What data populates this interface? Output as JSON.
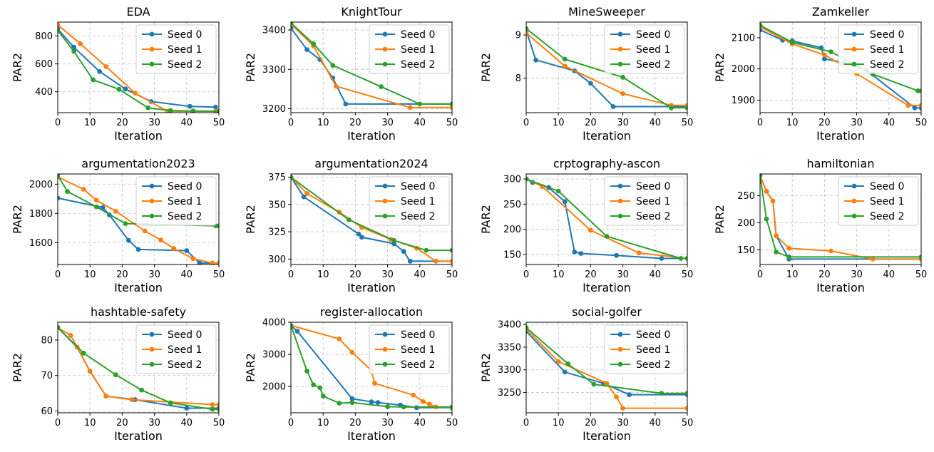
{
  "colors": {
    "seed0": "#1f77b4",
    "seed1": "#ff7f0e",
    "seed2": "#2ca02c"
  },
  "chart_data": [
    {
      "type": "line",
      "title": "EDA",
      "xlabel": "Iteration",
      "ylabel": "PAR2",
      "xlim": [
        0,
        50
      ],
      "ylim": [
        250,
        900
      ],
      "xticks": [
        0,
        10,
        20,
        30,
        40,
        50
      ],
      "yticks": [
        400,
        600,
        800
      ],
      "grid": true,
      "legend": "upper right",
      "series": [
        {
          "name": "Seed 0",
          "color": "#1f77b4",
          "x": [
            0,
            5,
            13,
            21,
            29,
            41,
            49
          ],
          "y": [
            850,
            720,
            545,
            420,
            330,
            295,
            290
          ]
        },
        {
          "name": "Seed 1",
          "color": "#ff7f0e",
          "x": [
            0,
            7,
            15,
            24,
            34,
            49
          ],
          "y": [
            880,
            745,
            580,
            390,
            260,
            260
          ]
        },
        {
          "name": "Seed 2",
          "color": "#2ca02c",
          "x": [
            0,
            5,
            11,
            19,
            28,
            35,
            42,
            50
          ],
          "y": [
            840,
            690,
            485,
            418,
            285,
            265,
            262,
            260
          ]
        }
      ]
    },
    {
      "type": "line",
      "title": "KnightTour",
      "xlabel": "Iteration",
      "ylabel": "PAR2",
      "xlim": [
        0,
        50
      ],
      "ylim": [
        3190,
        3420
      ],
      "xticks": [
        0,
        10,
        20,
        30,
        40,
        50
      ],
      "yticks": [
        3200,
        3300,
        3400
      ],
      "grid": true,
      "legend": "upper right",
      "series": [
        {
          "name": "Seed 0",
          "color": "#1f77b4",
          "x": [
            0,
            5,
            9,
            13,
            17,
            50
          ],
          "y": [
            3405,
            3350,
            3325,
            3278,
            3212,
            3212
          ]
        },
        {
          "name": "Seed 1",
          "color": "#ff7f0e",
          "x": [
            0,
            7,
            14,
            37,
            50
          ],
          "y": [
            3415,
            3360,
            3257,
            3203,
            3203
          ]
        },
        {
          "name": "Seed 2",
          "color": "#2ca02c",
          "x": [
            0,
            7,
            13,
            28,
            40,
            50
          ],
          "y": [
            3418,
            3365,
            3310,
            3256,
            3212,
            3212
          ]
        }
      ]
    },
    {
      "type": "line",
      "title": "MineSweeper",
      "xlabel": "Iteration",
      "ylabel": "PAR2",
      "xlim": [
        0,
        50
      ],
      "ylim": [
        7.2,
        9.3
      ],
      "xticks": [
        0,
        10,
        20,
        30,
        40,
        50
      ],
      "yticks": [
        8,
        9
      ],
      "grid": true,
      "legend": "upper right",
      "series": [
        {
          "name": "Seed 0",
          "color": "#1f77b4",
          "x": [
            0,
            3,
            15,
            20,
            27,
            50
          ],
          "y": [
            9.1,
            8.42,
            8.17,
            7.88,
            7.34,
            7.34
          ]
        },
        {
          "name": "Seed 1",
          "color": "#ff7f0e",
          "x": [
            0,
            12,
            30,
            45,
            50
          ],
          "y": [
            9.05,
            8.28,
            7.64,
            7.37,
            7.37
          ]
        },
        {
          "name": "Seed 2",
          "color": "#2ca02c",
          "x": [
            0,
            12,
            30,
            45,
            50
          ],
          "y": [
            9.15,
            8.44,
            8.02,
            7.31,
            7.31
          ]
        }
      ]
    },
    {
      "type": "line",
      "title": "Zamkeller",
      "xlabel": "Iteration",
      "ylabel": "PAR2",
      "xlim": [
        0,
        50
      ],
      "ylim": [
        1860,
        2150
      ],
      "xticks": [
        0,
        10,
        20,
        30,
        40,
        50
      ],
      "yticks": [
        1900,
        2000,
        2100
      ],
      "grid": true,
      "legend": "upper right",
      "series": [
        {
          "name": "Seed 0",
          "color": "#1f77b4",
          "x": [
            0,
            7,
            10,
            19,
            20,
            26,
            33,
            48,
            50
          ],
          "y": [
            2125,
            2092,
            2090,
            2068,
            2032,
            2020,
            1996,
            1875,
            1875
          ]
        },
        {
          "name": "Seed 1",
          "color": "#ff7f0e",
          "x": [
            0,
            10,
            20,
            30,
            46,
            50
          ],
          "y": [
            2135,
            2080,
            2045,
            1985,
            1883,
            1883
          ]
        },
        {
          "name": "Seed 2",
          "color": "#2ca02c",
          "x": [
            0,
            10,
            22,
            35,
            49,
            50
          ],
          "y": [
            2140,
            2085,
            2055,
            1983,
            1930,
            1930
          ]
        }
      ]
    },
    {
      "type": "line",
      "title": "argumentation2023",
      "xlabel": "Iteration",
      "ylabel": "PAR2",
      "xlim": [
        0,
        50
      ],
      "ylim": [
        1450,
        2070
      ],
      "xticks": [
        0,
        10,
        20,
        30,
        40,
        50
      ],
      "yticks": [
        1600,
        1800,
        2000
      ],
      "grid": true,
      "legend": "upper right",
      "series": [
        {
          "name": "Seed 0",
          "color": "#1f77b4",
          "x": [
            0,
            14,
            16,
            22,
            25,
            40,
            44,
            50
          ],
          "y": [
            1905,
            1840,
            1790,
            1615,
            1553,
            1545,
            1460,
            1460
          ]
        },
        {
          "name": "Seed 1",
          "color": "#ff7f0e",
          "x": [
            0,
            8,
            12,
            18,
            27,
            32,
            36,
            42,
            48,
            50
          ],
          "y": [
            2050,
            1965,
            1890,
            1815,
            1680,
            1618,
            1560,
            1490,
            1460,
            1460
          ]
        },
        {
          "name": "Seed 2",
          "color": "#2ca02c",
          "x": [
            0,
            3,
            12,
            21,
            49,
            50
          ],
          "y": [
            2060,
            1950,
            1845,
            1730,
            1715,
            1715
          ]
        }
      ]
    },
    {
      "type": "line",
      "title": "argumentation2024",
      "xlabel": "Iteration",
      "ylabel": "PAR2",
      "xlim": [
        0,
        50
      ],
      "ylim": [
        295,
        378
      ],
      "xticks": [
        0,
        10,
        20,
        30,
        40,
        50
      ],
      "yticks": [
        300,
        325,
        350,
        375
      ],
      "grid": true,
      "legend": "upper right",
      "series": [
        {
          "name": "Seed 0",
          "color": "#1f77b4",
          "x": [
            0,
            4,
            21,
            22,
            32,
            35,
            37,
            50
          ],
          "y": [
            375,
            357,
            323,
            320,
            314,
            307,
            298,
            298
          ]
        },
        {
          "name": "Seed 1",
          "color": "#ff7f0e",
          "x": [
            0,
            5,
            15,
            22,
            31,
            39,
            45,
            50
          ],
          "y": [
            375,
            360,
            343,
            329,
            318,
            310,
            298,
            298
          ]
        },
        {
          "name": "Seed 2",
          "color": "#2ca02c",
          "x": [
            0,
            18,
            32,
            42,
            50
          ],
          "y": [
            375,
            336,
            317,
            308,
            308
          ]
        }
      ]
    },
    {
      "type": "line",
      "title": "crptography-ascon",
      "xlabel": "Iteration",
      "ylabel": "PAR2",
      "xlim": [
        0,
        50
      ],
      "ylim": [
        130,
        310
      ],
      "xticks": [
        0,
        10,
        20,
        30,
        40,
        50
      ],
      "yticks": [
        150,
        200,
        250,
        300
      ],
      "grid": true,
      "legend": "upper right",
      "series": [
        {
          "name": "Seed 0",
          "color": "#1f77b4",
          "x": [
            0,
            2,
            7,
            12,
            15,
            17,
            28,
            42,
            50
          ],
          "y": [
            300,
            293,
            283,
            255,
            155,
            152,
            148,
            142,
            142
          ]
        },
        {
          "name": "Seed 1",
          "color": "#ff7f0e",
          "x": [
            0,
            5,
            20,
            35,
            50
          ],
          "y": [
            300,
            285,
            198,
            153,
            142
          ]
        },
        {
          "name": "Seed 2",
          "color": "#2ca02c",
          "x": [
            0,
            10,
            25,
            48,
            50
          ],
          "y": [
            300,
            276,
            186,
            142,
            142
          ]
        }
      ]
    },
    {
      "type": "line",
      "title": "hamiltonian",
      "xlabel": "Iteration",
      "ylabel": "PAR2",
      "xlim": [
        0,
        50
      ],
      "ylim": [
        123,
        290
      ],
      "xticks": [
        0,
        10,
        20,
        30,
        40,
        50
      ],
      "yticks": [
        150,
        200,
        250
      ],
      "grid": true,
      "legend": "upper right",
      "series": [
        {
          "name": "Seed 0",
          "color": "#1f77b4",
          "x": [
            0,
            2,
            4,
            5,
            9,
            50
          ],
          "y": [
            287,
            258,
            240,
            176,
            133,
            133
          ]
        },
        {
          "name": "Seed 1",
          "color": "#ff7f0e",
          "x": [
            0,
            2,
            4,
            5,
            9,
            22,
            35,
            50
          ],
          "y": [
            287,
            258,
            240,
            176,
            153,
            148,
            133,
            133
          ]
        },
        {
          "name": "Seed 2",
          "color": "#2ca02c",
          "x": [
            0,
            2,
            5,
            9,
            50
          ],
          "y": [
            287,
            207,
            146,
            137,
            137
          ]
        }
      ]
    },
    {
      "type": "line",
      "title": "hashtable-safety",
      "xlabel": "Iteration",
      "ylabel": "PAR2",
      "xlim": [
        0,
        50
      ],
      "ylim": [
        59.5,
        85
      ],
      "xticks": [
        0,
        10,
        20,
        30,
        40,
        50
      ],
      "yticks": [
        60,
        70,
        80
      ],
      "grid": true,
      "legend": "upper right",
      "series": [
        {
          "name": "Seed 0",
          "color": "#1f77b4",
          "x": [
            0,
            6,
            10,
            15,
            24,
            40,
            50
          ],
          "y": [
            83.5,
            78,
            71.2,
            64.2,
            63.2,
            60.8,
            60.8
          ]
        },
        {
          "name": "Seed 1",
          "color": "#ff7f0e",
          "x": [
            0,
            4,
            6,
            10,
            15,
            23,
            48,
            50
          ],
          "y": [
            83.5,
            81.3,
            78,
            71.2,
            64.2,
            63.2,
            61.8,
            61.8
          ]
        },
        {
          "name": "Seed 2",
          "color": "#2ca02c",
          "x": [
            0,
            8,
            18,
            26,
            35,
            48,
            50
          ],
          "y": [
            83.5,
            76.3,
            70.2,
            65.9,
            62.3,
            60.5,
            60.5
          ]
        }
      ]
    },
    {
      "type": "line",
      "title": "register-allocation",
      "xlabel": "Iteration",
      "ylabel": "PAR2",
      "xlim": [
        0,
        50
      ],
      "ylim": [
        1180,
        4000
      ],
      "xticks": [
        0,
        10,
        20,
        30,
        40,
        50
      ],
      "yticks": [
        2000,
        3000,
        4000
      ],
      "grid": true,
      "legend": "upper right",
      "series": [
        {
          "name": "Seed 0",
          "color": "#1f77b4",
          "x": [
            0,
            2,
            19,
            25,
            27,
            34,
            39,
            50
          ],
          "y": [
            3900,
            3720,
            1620,
            1520,
            1500,
            1420,
            1340,
            1340
          ]
        },
        {
          "name": "Seed 1",
          "color": "#ff7f0e",
          "x": [
            0,
            15,
            19,
            25,
            26,
            38,
            41,
            43,
            45,
            50
          ],
          "y": [
            3900,
            3480,
            3060,
            2500,
            2100,
            1730,
            1530,
            1450,
            1360,
            1360
          ]
        },
        {
          "name": "Seed 2",
          "color": "#2ca02c",
          "x": [
            0,
            5,
            7,
            9,
            10,
            15,
            19,
            30,
            35,
            50
          ],
          "y": [
            3900,
            2480,
            2050,
            1960,
            1700,
            1480,
            1500,
            1370,
            1360,
            1360
          ]
        }
      ]
    },
    {
      "type": "line",
      "title": "social-golfer",
      "xlabel": "Iteration",
      "ylabel": "PAR2",
      "xlim": [
        0,
        50
      ],
      "ylim": [
        3205,
        3405
      ],
      "xticks": [
        0,
        10,
        20,
        30,
        40,
        50
      ],
      "yticks": [
        3250,
        3300,
        3350,
        3400
      ],
      "grid": true,
      "legend": "upper right",
      "series": [
        {
          "name": "Seed 0",
          "color": "#1f77b4",
          "x": [
            0,
            12,
            24,
            32,
            50
          ],
          "y": [
            3385,
            3295,
            3270,
            3245,
            3245
          ]
        },
        {
          "name": "Seed 1",
          "color": "#ff7f0e",
          "x": [
            0,
            10,
            25,
            28,
            30,
            50
          ],
          "y": [
            3390,
            3318,
            3270,
            3240,
            3215,
            3215
          ]
        },
        {
          "name": "Seed 2",
          "color": "#2ca02c",
          "x": [
            0,
            13,
            21,
            42,
            50
          ],
          "y": [
            3393,
            3313,
            3268,
            3248,
            3248
          ]
        }
      ]
    }
  ]
}
